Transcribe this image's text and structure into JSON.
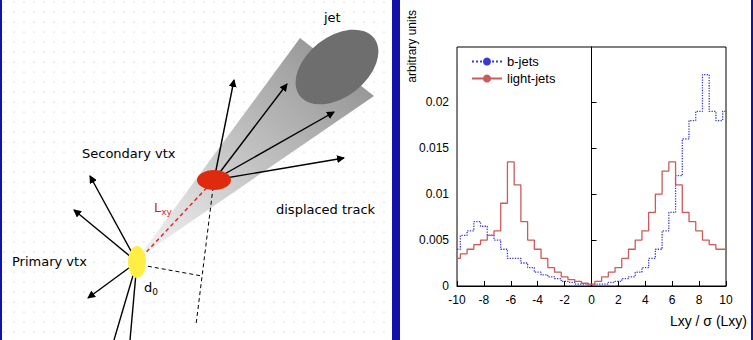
{
  "diagram": {
    "jet": "jet",
    "secondary_vertex": "Secondary vtx",
    "displaced_track": "displaced track",
    "primary_vertex": "Primary vtx",
    "decay_length": "Lxy",
    "impact_parameter": "d0"
  },
  "chart_data": {
    "type": "line",
    "x_label": "Lxy / σ (Lxy)",
    "y_label": "arbitrary units",
    "x": [
      -10,
      -9.5,
      -9,
      -8.5,
      -8,
      -7.5,
      -7,
      -6.5,
      -6,
      -5.5,
      -5,
      -4.5,
      -4,
      -3.5,
      -3,
      -2.5,
      -2,
      -1.5,
      -1,
      -0.5,
      0,
      0.5,
      1,
      1.5,
      2,
      2.5,
      3,
      3.5,
      4,
      4.5,
      5,
      5.5,
      6,
      6.5,
      7,
      7.5,
      8,
      8.5,
      9,
      9.5,
      10
    ],
    "series": [
      {
        "name": "b-jets",
        "color": "#3a3ad0",
        "line_style": "dotted",
        "values": [
          0.004,
          0.0055,
          0.006,
          0.007,
          0.0065,
          0.0055,
          0.005,
          0.004,
          0.003,
          0.003,
          0.0025,
          0.002,
          0.0015,
          0.0012,
          0.001,
          0.0008,
          0.0005,
          0.0004,
          0.0002,
          0.0002,
          0.0001,
          0.0002,
          0.0002,
          0.0004,
          0.0005,
          0.0008,
          0.001,
          0.0015,
          0.002,
          0.003,
          0.004,
          0.006,
          0.008,
          0.012,
          0.016,
          0.018,
          0.019,
          0.023,
          0.019,
          0.018,
          0.019
        ]
      },
      {
        "name": "light-jets",
        "color": "#cc5a5a",
        "line_style": "solid",
        "values": [
          0.003,
          0.0035,
          0.004,
          0.0045,
          0.005,
          0.0055,
          0.006,
          0.009,
          0.0135,
          0.011,
          0.007,
          0.005,
          0.004,
          0.003,
          0.002,
          0.0015,
          0.001,
          0.0007,
          0.0005,
          0.0003,
          0.0002,
          0.0005,
          0.001,
          0.0015,
          0.002,
          0.003,
          0.004,
          0.005,
          0.006,
          0.008,
          0.01,
          0.0125,
          0.0135,
          0.011,
          0.008,
          0.007,
          0.006,
          0.005,
          0.0045,
          0.004,
          0.004
        ]
      }
    ],
    "xlim": [
      -10,
      10
    ],
    "xticks": [
      -10,
      -8,
      -6,
      -4,
      -2,
      0,
      2,
      4,
      6,
      8,
      10
    ],
    "ylim": [
      0,
      0.026
    ],
    "yticks": [
      0,
      0.005,
      0.01,
      0.015,
      0.02
    ],
    "legend": "upper left",
    "grid": false
  }
}
